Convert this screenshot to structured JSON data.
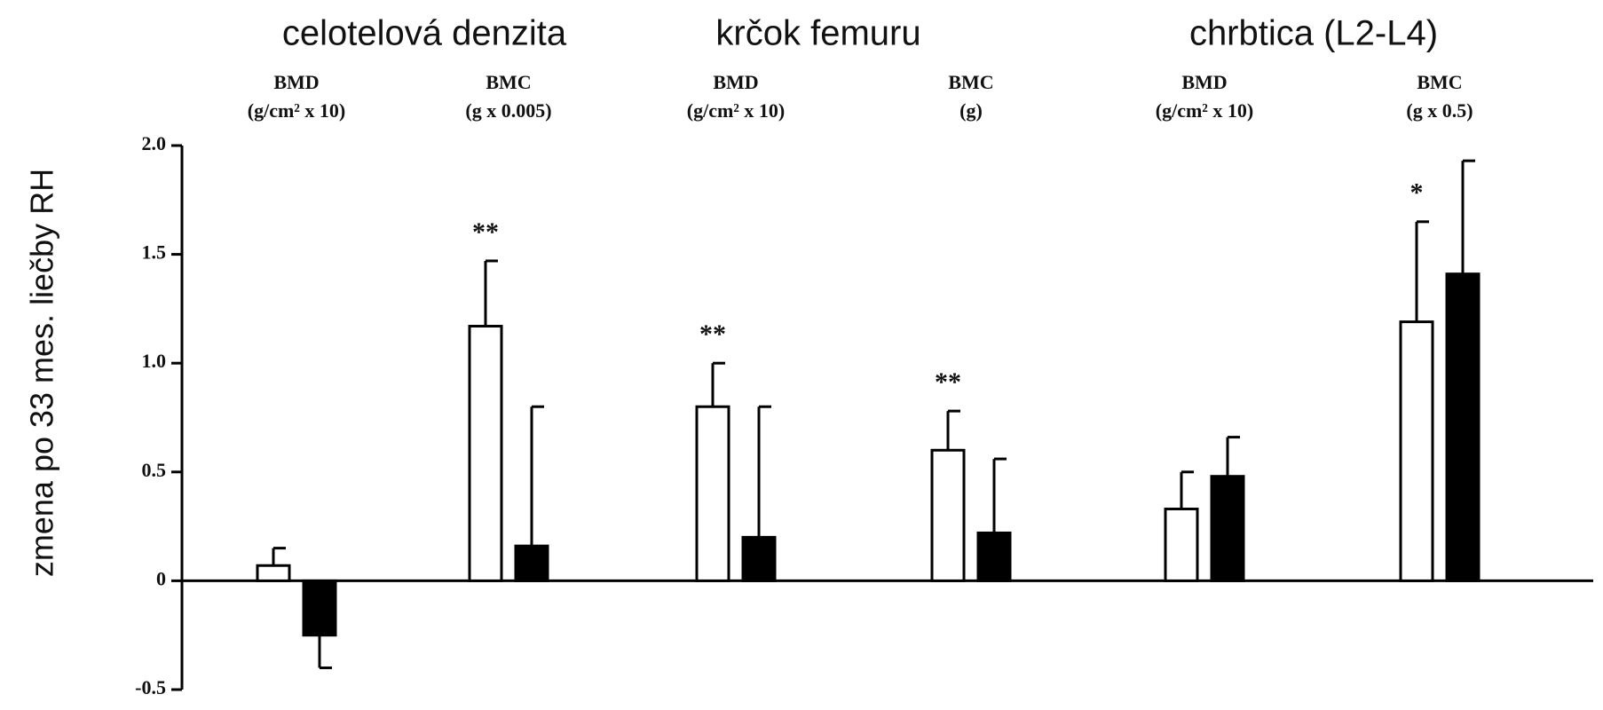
{
  "chart_data": {
    "type": "bar",
    "y_label": "zmena po 33 mes. liečby RH",
    "groups": [
      "celotelová denzita",
      "krčok femuru",
      "chrbtica (L2-L4)"
    ],
    "categories": [
      "BMD",
      "BMC",
      "BMD",
      "BMC",
      "BMD",
      "BMC"
    ],
    "category_units": [
      "(g/cm² x 10)",
      "(g x 0.005)",
      "(g/cm² x 10)",
      "(g)",
      "(g/cm² x 10)",
      "(g x 0.5)"
    ],
    "series": [
      {
        "color": "#ffffff",
        "values": [
          0.07,
          1.17,
          0.8,
          0.6,
          0.33,
          1.19
        ],
        "errors": [
          0.08,
          0.3,
          0.2,
          0.18,
          0.17,
          0.46
        ],
        "markers": [
          null,
          "**",
          "**",
          "**",
          null,
          "*"
        ]
      },
      {
        "color": "#000000",
        "values": [
          -0.25,
          0.16,
          0.2,
          0.22,
          0.48,
          1.41
        ],
        "errors": [
          0.15,
          0.64,
          0.6,
          0.34,
          0.18,
          0.52
        ]
      }
    ],
    "ylim": [
      -0.5,
      2.0
    ],
    "yticks": [
      {
        "value": 2,
        "label": "2.0"
      },
      {
        "value": 1.5,
        "label": "1.5"
      },
      {
        "value": 1,
        "label": "1.0"
      },
      {
        "value": 0.5,
        "label": "0.5"
      },
      0,
      -0.5
    ]
  }
}
